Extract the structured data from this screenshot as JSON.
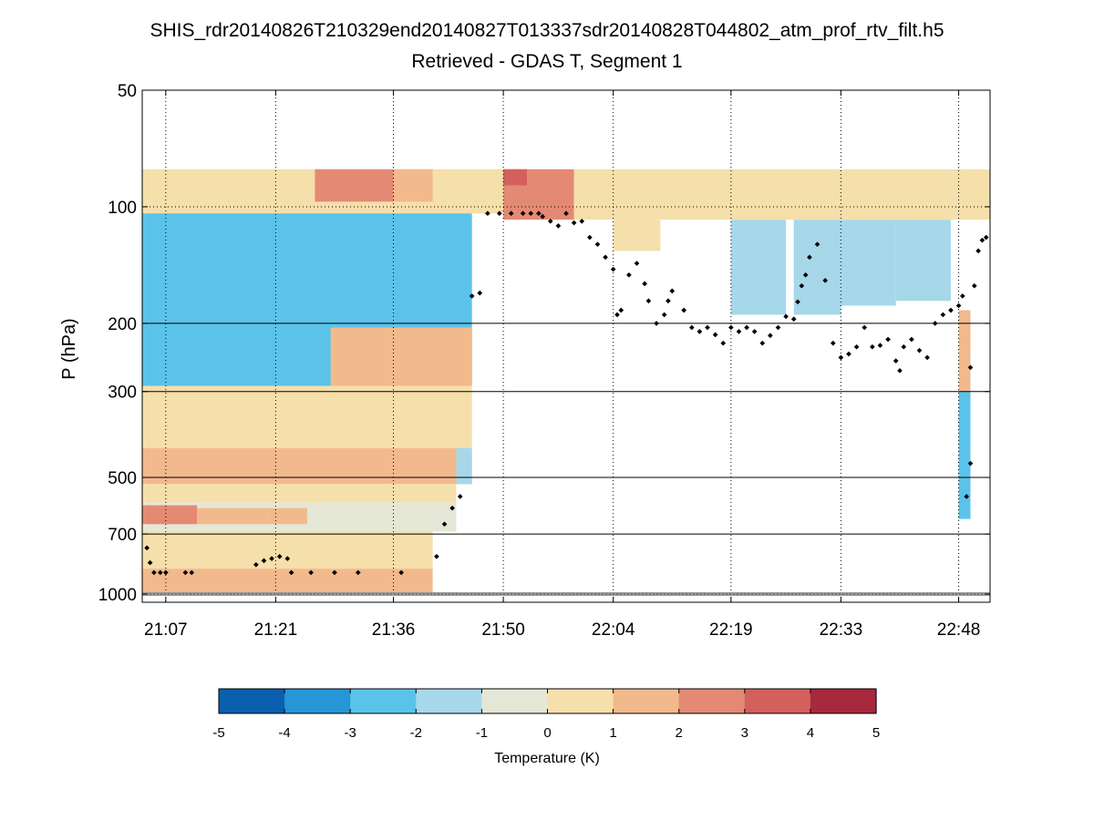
{
  "chart_data": {
    "type": "heatmap",
    "title": "SHIS_rdr20140826T210329end20140827T013337sdr20140828T044802_atm_prof_rtv_filt.h5",
    "subtitle": "Retrieved - GDAS T, Segment 1",
    "ylabel": "P (hPa)",
    "xlabel": "",
    "y_scale": "log",
    "y_reversed": true,
    "ylim": [
      50,
      1050
    ],
    "y_ticks": [
      50,
      100,
      200,
      300,
      500,
      700,
      1000
    ],
    "y_tick_labels": [
      "50",
      "100",
      "200",
      "300",
      "500",
      "700",
      "1000"
    ],
    "xlim_minutes": [
      64,
      172
    ],
    "x_ticks_minutes": [
      67,
      81,
      96,
      110,
      124,
      139,
      153,
      168
    ],
    "x_tick_labels": [
      "21:07",
      "21:21",
      "21:36",
      "21:50",
      "22:04",
      "22:19",
      "22:33",
      "22:48"
    ],
    "grid": "x dotted at ticks; y solid at 200, 300, 500, 700",
    "colorbar": {
      "label": "Temperature (K)",
      "range": [
        -5,
        5
      ],
      "ticks": [
        -5,
        -4,
        -3,
        -2,
        -1,
        0,
        1,
        2,
        3,
        4,
        5
      ],
      "tick_labels": [
        "-5",
        "-4",
        "-3",
        "-2",
        "-1",
        "0",
        "1",
        "2",
        "3",
        "4",
        "5"
      ],
      "colors": [
        "#0a5fae",
        "#2596d6",
        "#5bc3ea",
        "#a6d8ea",
        "#e4e7d6",
        "#f5dfaa",
        "#f2b98c",
        "#e48a74",
        "#d3605d",
        "#a8283e"
      ]
    },
    "regions": [
      {
        "t0": 64,
        "t1": 110,
        "p0": 80,
        "p1": 104,
        "v": 0.5
      },
      {
        "t0": 86,
        "t1": 96,
        "p0": 80,
        "p1": 97,
        "v": 2.0
      },
      {
        "t0": 96,
        "t1": 101,
        "p0": 80,
        "p1": 97,
        "v": 1.7
      },
      {
        "t0": 110,
        "t1": 119,
        "p0": 80,
        "p1": 108,
        "v": 2.2
      },
      {
        "t0": 110,
        "t1": 113,
        "p0": 80,
        "p1": 88,
        "v": 3.5
      },
      {
        "t0": 119,
        "t1": 172,
        "p0": 80,
        "p1": 108,
        "v": 0.6
      },
      {
        "t0": 64,
        "t1": 106,
        "p0": 104,
        "p1": 290,
        "v": -2.3
      },
      {
        "t0": 88,
        "t1": 106,
        "p0": 205,
        "p1": 290,
        "v": 1.0
      },
      {
        "t0": 64,
        "t1": 106,
        "p0": 290,
        "p1": 420,
        "v": 0.8
      },
      {
        "t0": 64,
        "t1": 106,
        "p0": 420,
        "p1": 520,
        "v": 1.3
      },
      {
        "t0": 64,
        "t1": 104,
        "p0": 520,
        "p1": 580,
        "v": 0.3
      },
      {
        "t0": 64,
        "t1": 104,
        "p0": 580,
        "p1": 690,
        "v": -0.6
      },
      {
        "t0": 64,
        "t1": 71,
        "p0": 590,
        "p1": 660,
        "v": 2.4
      },
      {
        "t0": 71,
        "t1": 80,
        "p0": 600,
        "p1": 660,
        "v": 1.6
      },
      {
        "t0": 80,
        "t1": 85,
        "p0": 600,
        "p1": 660,
        "v": 1.5
      },
      {
        "t0": 64,
        "t1": 101,
        "p0": 690,
        "p1": 860,
        "v": 0.7
      },
      {
        "t0": 64,
        "t1": 101,
        "p0": 860,
        "p1": 990,
        "v": 1.5
      },
      {
        "t0": 104,
        "t1": 106,
        "p0": 420,
        "p1": 520,
        "v": -1.8
      },
      {
        "t0": 124,
        "t1": 130,
        "p0": 108,
        "p1": 130,
        "v": 0.6
      },
      {
        "t0": 139,
        "t1": 146,
        "p0": 108,
        "p1": 190,
        "v": -1.5
      },
      {
        "t0": 147,
        "t1": 153,
        "p0": 108,
        "p1": 190,
        "v": -1.6
      },
      {
        "t0": 153,
        "t1": 160,
        "p0": 108,
        "p1": 180,
        "v": -2.0
      },
      {
        "t0": 160,
        "t1": 167,
        "p0": 108,
        "p1": 175,
        "v": -1.4
      },
      {
        "t0": 168,
        "t1": 169.5,
        "p0": 185,
        "p1": 300,
        "v": 1.2
      },
      {
        "t0": 168,
        "t1": 169.5,
        "p0": 300,
        "p1": 640,
        "v": -2.2
      }
    ],
    "tropopause_points": [
      [
        64.6,
        760
      ],
      [
        65.0,
        830
      ],
      [
        65.5,
        880
      ],
      [
        66.3,
        880
      ],
      [
        67.0,
        880
      ],
      [
        69.5,
        880
      ],
      [
        70.3,
        880
      ],
      [
        78.5,
        840
      ],
      [
        79.5,
        820
      ],
      [
        80.5,
        810
      ],
      [
        81.5,
        800
      ],
      [
        82.5,
        810
      ],
      [
        83.0,
        880
      ],
      [
        85.5,
        880
      ],
      [
        88.5,
        880
      ],
      [
        91.5,
        880
      ],
      [
        97.0,
        880
      ],
      [
        101.5,
        800
      ],
      [
        102.5,
        660
      ],
      [
        103.5,
        600
      ],
      [
        104.5,
        560
      ],
      [
        106.0,
        170
      ],
      [
        107.0,
        167
      ],
      [
        108.0,
        104
      ],
      [
        109.5,
        104
      ],
      [
        111.0,
        104
      ],
      [
        112.5,
        104
      ],
      [
        113.5,
        104
      ],
      [
        114.5,
        104
      ],
      [
        115.0,
        106
      ],
      [
        116.0,
        109
      ],
      [
        117.0,
        112
      ],
      [
        118.0,
        104
      ],
      [
        119.0,
        110
      ],
      [
        120.0,
        109
      ],
      [
        121.0,
        120
      ],
      [
        122.0,
        125
      ],
      [
        123.0,
        135
      ],
      [
        124.0,
        145
      ],
      [
        124.5,
        190
      ],
      [
        125.0,
        185
      ],
      [
        126.0,
        150
      ],
      [
        127.0,
        140
      ],
      [
        128.0,
        158
      ],
      [
        128.5,
        175
      ],
      [
        129.5,
        200
      ],
      [
        130.5,
        190
      ],
      [
        131.0,
        175
      ],
      [
        131.5,
        165
      ],
      [
        133.0,
        185
      ],
      [
        134.0,
        205
      ],
      [
        135.0,
        210
      ],
      [
        136.0,
        205
      ],
      [
        137.0,
        214
      ],
      [
        138.0,
        225
      ],
      [
        139.0,
        205
      ],
      [
        140.0,
        210
      ],
      [
        141.0,
        205
      ],
      [
        142.0,
        210
      ],
      [
        143.0,
        225
      ],
      [
        144.0,
        215
      ],
      [
        145.0,
        205
      ],
      [
        146.0,
        192
      ],
      [
        147.0,
        195
      ],
      [
        147.5,
        176
      ],
      [
        148.0,
        160
      ],
      [
        148.5,
        150
      ],
      [
        149.0,
        135
      ],
      [
        150.0,
        125
      ],
      [
        151.0,
        155
      ],
      [
        152.0,
        225
      ],
      [
        153.0,
        245
      ],
      [
        154.0,
        240
      ],
      [
        155.0,
        230
      ],
      [
        156.0,
        205
      ],
      [
        157.0,
        230
      ],
      [
        158.0,
        228
      ],
      [
        159.0,
        220
      ],
      [
        160.0,
        250
      ],
      [
        160.5,
        265
      ],
      [
        161.0,
        230
      ],
      [
        162.0,
        220
      ],
      [
        163.0,
        235
      ],
      [
        164.0,
        245
      ],
      [
        165.0,
        200
      ],
      [
        166.0,
        190
      ],
      [
        167.0,
        185
      ],
      [
        168.0,
        180
      ],
      [
        168.5,
        170
      ],
      [
        169.5,
        260
      ],
      [
        169.5,
        460
      ],
      [
        169.0,
        560
      ],
      [
        170.0,
        160
      ],
      [
        170.5,
        130
      ],
      [
        171.0,
        122
      ],
      [
        171.5,
        120
      ]
    ],
    "surface_level_hPa": 1000
  }
}
